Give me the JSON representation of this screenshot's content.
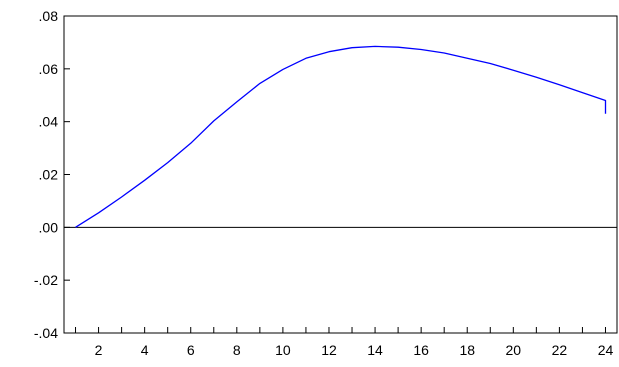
{
  "chart_data": {
    "type": "line",
    "title": "",
    "xlabel": "",
    "ylabel": "",
    "x": [
      1,
      2,
      3,
      4,
      5,
      6,
      7,
      8,
      9,
      10,
      11,
      12,
      13,
      14,
      15,
      16,
      17,
      18,
      19,
      20,
      21,
      22,
      23,
      24
    ],
    "series": [
      {
        "values": [
          0.0,
          0.0055,
          0.0115,
          0.0178,
          0.0245,
          0.0318,
          0.0403,
          0.0475,
          0.0545,
          0.0598,
          0.064,
          0.0665,
          0.068,
          0.0685,
          0.0682,
          0.0673,
          0.066,
          0.064,
          0.062,
          0.0595,
          0.0568,
          0.054,
          0.051,
          0.048,
          0.043
        ],
        "x": [
          1,
          2,
          3,
          4,
          5,
          6,
          7,
          8,
          9,
          10,
          11,
          12,
          13,
          14,
          15,
          16,
          17,
          18,
          19,
          20,
          21,
          22,
          23,
          24,
          24
        ],
        "color": "#0000ff"
      }
    ],
    "xlim": [
      0.5,
      24.5
    ],
    "ylim": [
      -0.04,
      0.08
    ],
    "yticks": [
      0.08,
      0.06,
      0.04,
      0.02,
      0.0,
      -0.02,
      -0.04
    ],
    "ytick_labels": [
      ".08",
      ".06",
      ".04",
      ".02",
      ".00",
      "-.02",
      "-.04"
    ],
    "xticks_major_labels": [
      "2",
      "4",
      "6",
      "8",
      "10",
      "12",
      "14",
      "16",
      "18",
      "20",
      "22",
      "24"
    ],
    "zero_line": true,
    "grid": false,
    "line_color": "#0000ff",
    "zero_line_color": "#000000"
  }
}
